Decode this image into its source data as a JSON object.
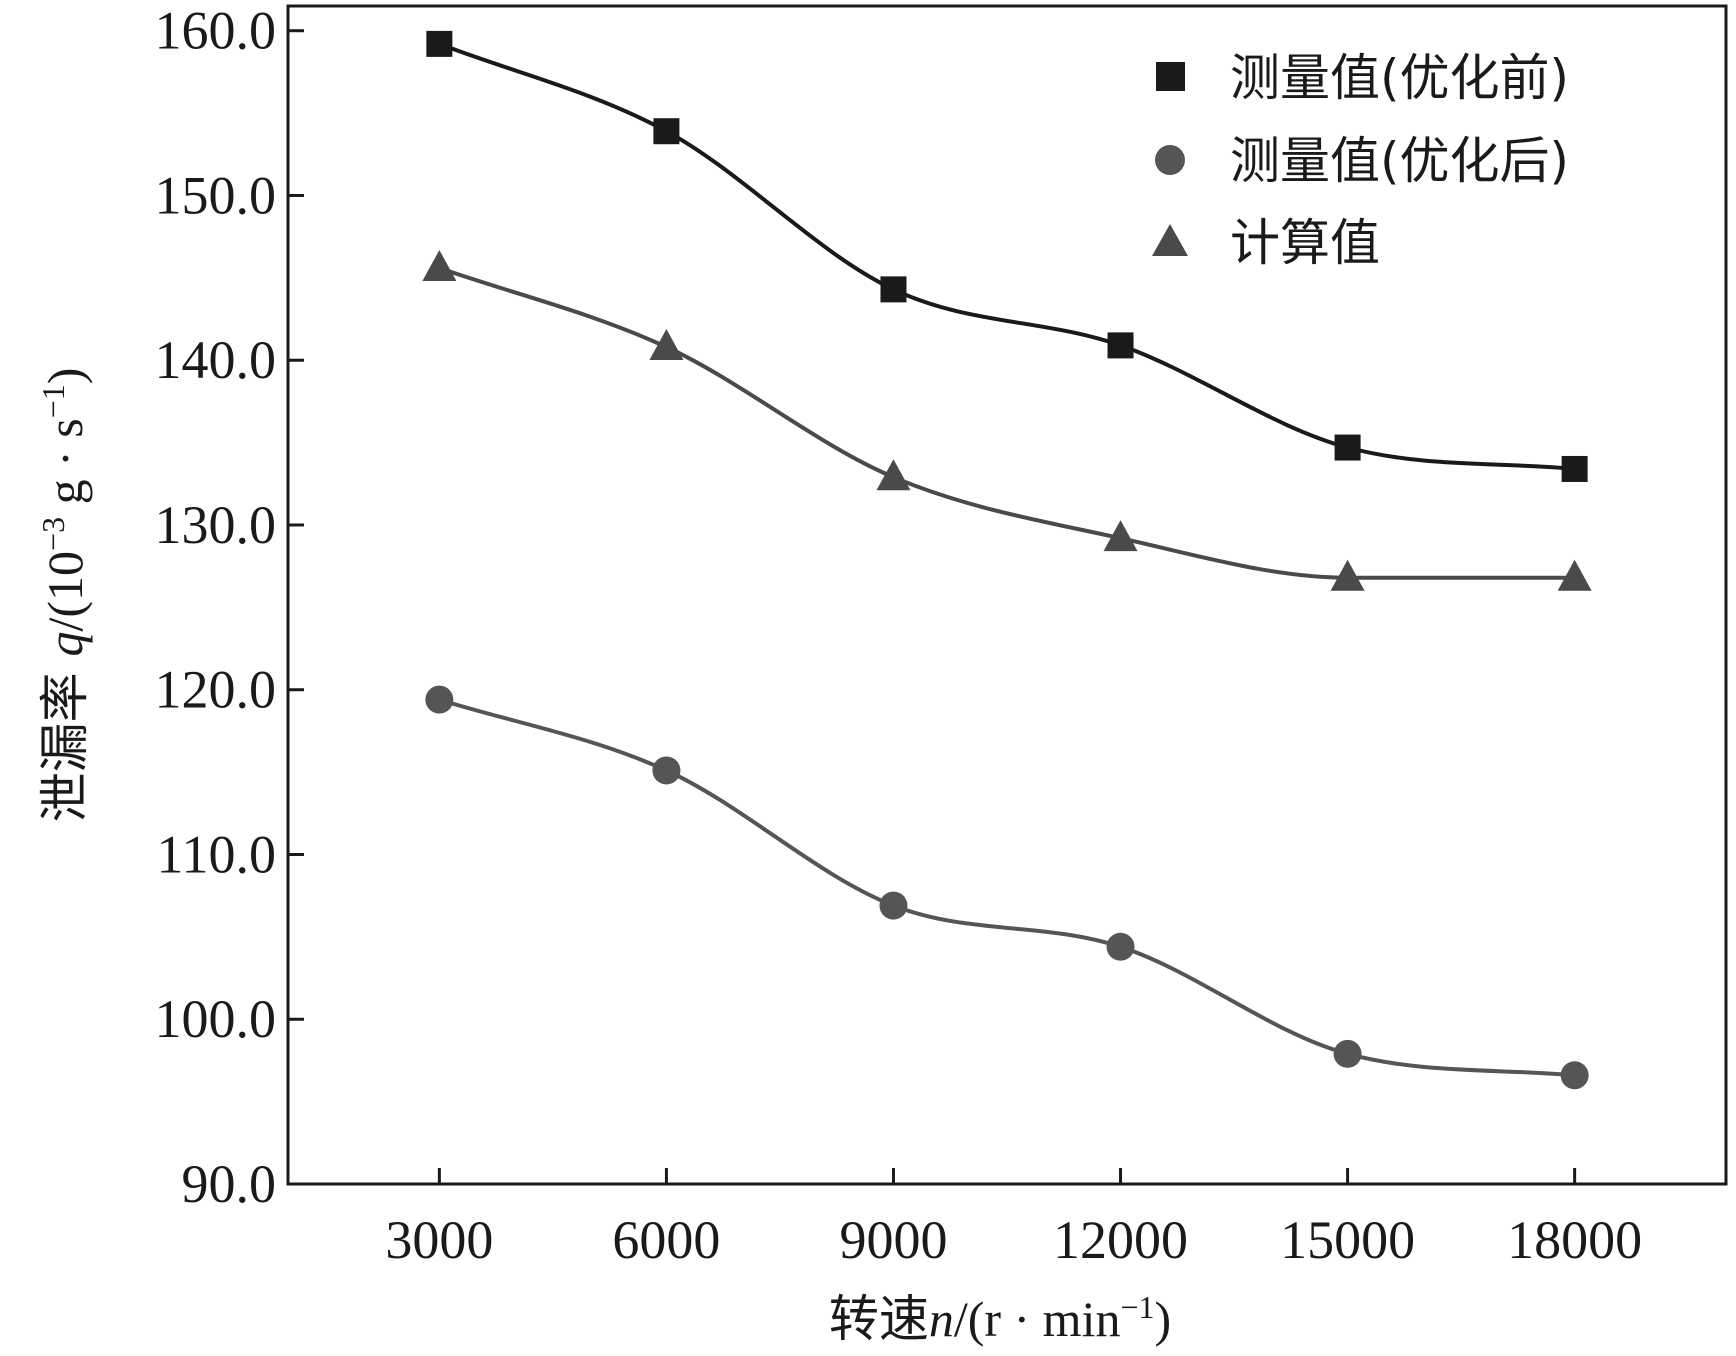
{
  "chart_data": {
    "type": "line",
    "title": "",
    "xlabel": {
      "prefix": "转速",
      "var": "n",
      "units": "/(r · min",
      "sup": "−1",
      "close": ")"
    },
    "ylabel": {
      "prefix": "泄漏率 ",
      "var": "q",
      "units": "/(10",
      "sup1": "−3",
      "mid": " g · s",
      "sup2": "−1",
      "close": ")"
    },
    "x": [
      3000,
      6000,
      9000,
      12000,
      15000,
      18000
    ],
    "xticks": [
      "3000",
      "6000",
      "9000",
      "12000",
      "15000",
      "18000"
    ],
    "xlim": [
      1000,
      20000
    ],
    "ylim": [
      90,
      161.5
    ],
    "yticks": [
      "90.0",
      "100.0",
      "110.0",
      "120.0",
      "130.0",
      "140.0",
      "150.0",
      "160.0"
    ],
    "grid": false,
    "legend_position": "top-right",
    "series": [
      {
        "name": "测量值(优化前)",
        "marker": "square",
        "color": "#1a1a1a",
        "values": [
          159.2,
          153.9,
          144.3,
          140.9,
          134.7,
          133.4
        ]
      },
      {
        "name": "测量值(优化后)",
        "marker": "circle",
        "color": "#555555",
        "values": [
          119.4,
          115.1,
          106.9,
          104.4,
          97.9,
          96.6
        ]
      },
      {
        "name": "计算值",
        "marker": "triangle",
        "color": "#4a4a4a",
        "values": [
          145.6,
          140.8,
          132.9,
          129.2,
          126.8,
          126.8
        ]
      }
    ]
  }
}
